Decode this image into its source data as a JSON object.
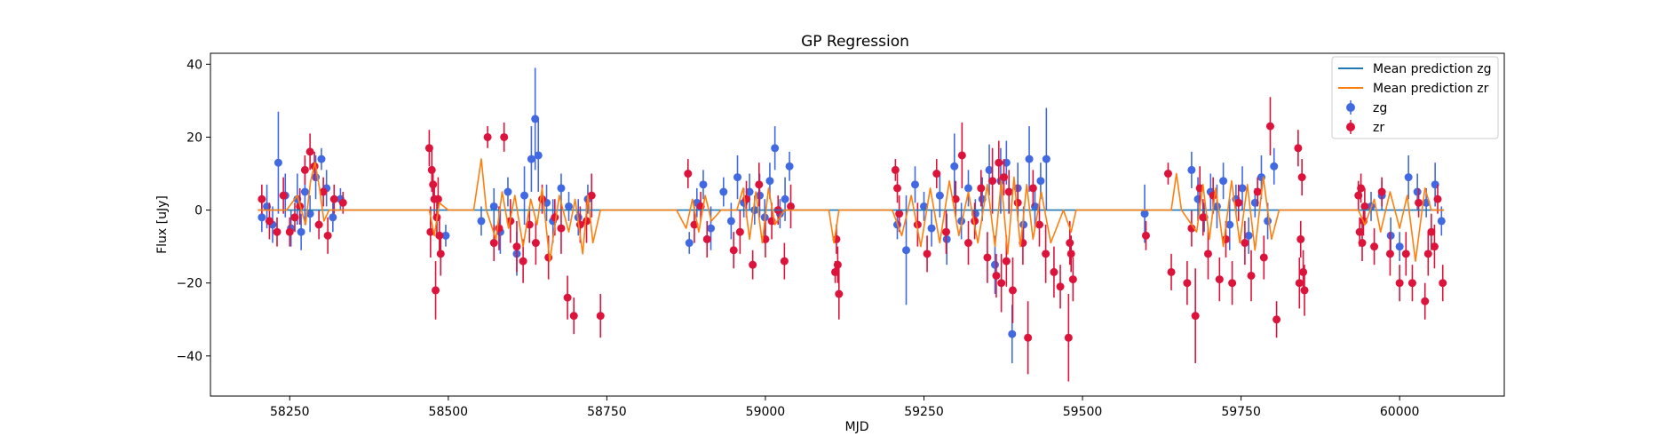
{
  "chart_data": {
    "type": "scatter",
    "title": "GP Regression",
    "xlabel": "MJD",
    "ylabel": "Flux [uJy]",
    "xlim": [
      58125,
      60165
    ],
    "ylim": [
      -51,
      43
    ],
    "xticks": [
      58250,
      58500,
      58750,
      59000,
      59250,
      59500,
      59750,
      60000
    ],
    "yticks": [
      -40,
      -20,
      0,
      20,
      40
    ],
    "grid": false,
    "legend_position": "top-right",
    "legend": [
      "Mean prediction zg",
      "Mean prediction zr",
      "zg",
      "zr"
    ],
    "colors": {
      "zg_line": "#1f77b4",
      "zr_line": "#ff7f0e",
      "zg_points": "#4169e1",
      "zr_points": "#dc143c"
    },
    "series": [
      {
        "name": "Mean prediction zg",
        "kind": "line",
        "color": "#1f77b4",
        "x": [
          58200,
          60070
        ],
        "y": [
          0,
          0
        ]
      },
      {
        "name": "Mean prediction zr",
        "kind": "line",
        "color": "#ff7f0e",
        "x": [
          58200,
          58245,
          58262,
          58275,
          58283,
          58290,
          58297,
          58304,
          58312,
          58330,
          58470,
          58478,
          58486,
          58500,
          58540,
          58552,
          58560,
          58575,
          58585,
          58595,
          58605,
          58618,
          58630,
          58640,
          58648,
          58660,
          58675,
          58690,
          58700,
          58712,
          58720,
          58728,
          58740,
          58860,
          58875,
          58885,
          58895,
          58905,
          58915,
          58930,
          58955,
          58965,
          58975,
          58985,
          58995,
          59005,
          59015,
          59030,
          59100,
          59108,
          59116,
          59200,
          59215,
          59230,
          59245,
          59260,
          59275,
          59290,
          59305,
          59320,
          59335,
          59350,
          59362,
          59372,
          59382,
          59392,
          59402,
          59412,
          59422,
          59435,
          59450,
          59470,
          59482,
          59490,
          59600,
          59640,
          59648,
          59656,
          59680,
          59690,
          59700,
          59710,
          59722,
          59735,
          59748,
          59760,
          59772,
          59785,
          59798,
          59810,
          59845,
          59935,
          59945,
          59960,
          59970,
          59985,
          60000,
          60012,
          60025,
          60040,
          60050,
          60070
        ],
        "y": [
          0,
          0,
          4,
          -4,
          8,
          13,
          6,
          -3,
          0,
          0,
          0,
          -7,
          2,
          0,
          0,
          14,
          0,
          -8,
          5,
          -5,
          4,
          -10,
          3,
          -4,
          6,
          -14,
          4,
          -6,
          3,
          -12,
          4,
          -9,
          0,
          0,
          -5,
          3,
          -6,
          4,
          -3,
          0,
          0,
          6,
          -8,
          5,
          -9,
          6,
          -4,
          0,
          0,
          -9,
          0,
          0,
          -7,
          4,
          -10,
          6,
          -9,
          8,
          -7,
          5,
          -9,
          7,
          -10,
          8,
          -12,
          9,
          -10,
          7,
          -8,
          5,
          -9,
          0,
          -6,
          0,
          0,
          0,
          10,
          0,
          -6,
          7,
          -8,
          6,
          -10,
          8,
          -9,
          7,
          -11,
          9,
          -8,
          0,
          0,
          0,
          -4,
          3,
          -6,
          5,
          -5,
          4,
          -14,
          6,
          0,
          0
        ]
      }
    ],
    "points": {
      "zg": {
        "x": [
          58206,
          58214,
          58223,
          58232,
          58243,
          58252,
          58262,
          58268,
          58274,
          58282,
          58291,
          58300,
          58308,
          58318,
          58330,
          58496,
          58552,
          58572,
          58582,
          58594,
          58608,
          58620,
          58631,
          58637,
          58642,
          58655,
          58665,
          58678,
          58690,
          58705,
          58720,
          58880,
          58892,
          58902,
          58914,
          58934,
          58946,
          58956,
          58966,
          58975,
          58983,
          58991,
          58999,
          59007,
          59015,
          59023,
          59031,
          59038,
          59208,
          59222,
          59236,
          59250,
          59262,
          59275,
          59286,
          59298,
          59309,
          59320,
          59331,
          59342,
          59353,
          59362,
          59371,
          59380,
          59389,
          59398,
          59407,
          59416,
          59425,
          59434,
          59443,
          59598,
          59672,
          59682,
          59692,
          59702,
          59712,
          59722,
          59732,
          59742,
          59752,
          59762,
          59772,
          59782,
          59792,
          59802,
          59955,
          59972,
          59986,
          60000,
          60014,
          60028,
          60042,
          60056,
          60066
        ],
        "y": [
          -2,
          1,
          -4,
          13,
          4,
          -5,
          3,
          -6,
          5,
          -1,
          9,
          14,
          6,
          -2,
          3,
          -7,
          -3,
          1,
          -6,
          5,
          -12,
          4,
          14,
          25,
          15,
          2,
          -3,
          6,
          1,
          -2,
          3,
          -9,
          2,
          7,
          -5,
          5,
          -3,
          9,
          2,
          5,
          0,
          4,
          -2,
          8,
          17,
          -1,
          3,
          12,
          -4,
          -11,
          7,
          1,
          -5,
          4,
          -8,
          12,
          -3,
          6,
          -1,
          3,
          11,
          -15,
          8,
          13,
          -34,
          6,
          -4,
          14,
          1,
          8,
          14,
          -1,
          11,
          3,
          -2,
          5,
          1,
          8,
          -4,
          3,
          6,
          -7,
          2,
          9,
          -3,
          12,
          1,
          4,
          -7,
          -10,
          9,
          5,
          2,
          7,
          -3
        ],
        "err": [
          4,
          6,
          5,
          14,
          6,
          5,
          7,
          5,
          9,
          5,
          6,
          3,
          5,
          4,
          3,
          3,
          4,
          5,
          6,
          4,
          6,
          8,
          9,
          14,
          10,
          5,
          6,
          4,
          4,
          5,
          4,
          3,
          4,
          4,
          6,
          4,
          5,
          6,
          4,
          5,
          4,
          6,
          5,
          5,
          6,
          4,
          6,
          4,
          4,
          15,
          5,
          4,
          5,
          6,
          7,
          9,
          5,
          5,
          4,
          6,
          7,
          8,
          9,
          6,
          8,
          7,
          5,
          9,
          6,
          5,
          14,
          8,
          5,
          6,
          4,
          5,
          6,
          5,
          7,
          4,
          6,
          5,
          4,
          6,
          5,
          5,
          4,
          4,
          5,
          4,
          6,
          5,
          4,
          6,
          4
        ]
      },
      "zr": {
        "x": [
          58206,
          58218,
          58230,
          58240,
          58250,
          58258,
          58266,
          58274,
          58282,
          58289,
          58296,
          58303,
          58310,
          58320,
          58334,
          58470,
          58472,
          58474,
          58476,
          58478,
          58480,
          58482,
          58484,
          58486,
          58488,
          58562,
          58572,
          58580,
          58588,
          58598,
          58608,
          58618,
          58628,
          58638,
          58648,
          58658,
          58668,
          58678,
          58688,
          58698,
          58708,
          58718,
          58726,
          58740,
          58878,
          58888,
          58898,
          58908,
          58950,
          58960,
          58970,
          58980,
          58990,
          59000,
          59010,
          59020,
          59030,
          59040,
          59110,
          59112,
          59114,
          59116,
          59205,
          59208,
          59211,
          59240,
          59255,
          59270,
          59285,
          59300,
          59310,
          59320,
          59330,
          59340,
          59350,
          59358,
          59364,
          59368,
          59372,
          59376,
          59380,
          59384,
          59390,
          59398,
          59406,
          59414,
          59422,
          59432,
          59442,
          59455,
          59465,
          59478,
          59480,
          59482,
          59485,
          59600,
          59635,
          59640,
          59665,
          59672,
          59678,
          59685,
          59690,
          59698,
          59706,
          59716,
          59726,
          59736,
          59746,
          59756,
          59766,
          59776,
          59786,
          59796,
          59806,
          59840,
          59842,
          59844,
          59846,
          59848,
          59850,
          59935,
          59937,
          59939,
          59941,
          59943,
          59945,
          59960,
          59972,
          59985,
          60000,
          60010,
          60020,
          60030,
          60040,
          60045,
          60050,
          60055,
          60060,
          60068
        ],
        "y": [
          3,
          -3,
          -6,
          4,
          -6,
          -2,
          1,
          11,
          16,
          12,
          -4,
          5,
          -7,
          3,
          2,
          17,
          -6,
          11,
          7,
          3,
          -22,
          -2,
          3,
          -7,
          -12,
          20,
          -9,
          -5,
          20,
          -3,
          -10,
          -14,
          -4,
          -9,
          3,
          -13,
          -2,
          -5,
          -24,
          -29,
          -4,
          -3,
          4,
          -29,
          10,
          -4,
          1,
          -8,
          -11,
          -6,
          3,
          -15,
          7,
          -8,
          -3,
          0,
          -14,
          1,
          -17,
          -8,
          -15,
          -23,
          11,
          6,
          -1,
          -4,
          -12,
          10,
          -6,
          3,
          15,
          -9,
          -3,
          6,
          -13,
          8,
          -18,
          13,
          -20,
          9,
          -14,
          5,
          -22,
          2,
          -9,
          -35,
          6,
          -4,
          -12,
          -17,
          -21,
          -35,
          -9,
          -12,
          -19,
          -7,
          10,
          -17,
          -20,
          -5,
          -29,
          6,
          -2,
          -12,
          4,
          -19,
          -8,
          -20,
          2,
          -9,
          -18,
          5,
          -13,
          23,
          -30,
          17,
          -20,
          -8,
          9,
          -17,
          -22,
          4,
          -6,
          6,
          -9,
          -3,
          1,
          -10,
          5,
          -12,
          -20,
          -12,
          -20,
          2,
          -25,
          -12,
          -6,
          -10,
          3,
          -20
        ],
        "err": [
          4,
          5,
          4,
          5,
          4,
          4,
          5,
          4,
          5,
          4,
          4,
          4,
          5,
          4,
          3,
          5,
          7,
          6,
          5,
          5,
          8,
          5,
          6,
          5,
          6,
          3,
          5,
          6,
          4,
          6,
          7,
          6,
          5,
          6,
          4,
          6,
          5,
          7,
          6,
          5,
          5,
          6,
          6,
          6,
          4,
          5,
          4,
          5,
          5,
          6,
          5,
          4,
          6,
          5,
          5,
          4,
          5,
          6,
          3,
          4,
          5,
          7,
          3,
          4,
          5,
          6,
          5,
          4,
          6,
          5,
          9,
          6,
          5,
          5,
          7,
          9,
          6,
          6,
          8,
          5,
          7,
          6,
          9,
          5,
          6,
          10,
          5,
          6,
          8,
          7,
          6,
          12,
          6,
          5,
          6,
          4,
          3,
          5,
          6,
          5,
          13,
          6,
          5,
          7,
          5,
          6,
          5,
          6,
          5,
          6,
          7,
          4,
          6,
          8,
          5,
          5,
          7,
          5,
          5,
          6,
          7,
          4,
          4,
          4,
          5,
          4,
          5,
          5,
          4,
          6,
          5,
          6,
          5,
          4,
          5,
          6,
          5,
          6,
          4,
          5
        ]
      }
    }
  }
}
